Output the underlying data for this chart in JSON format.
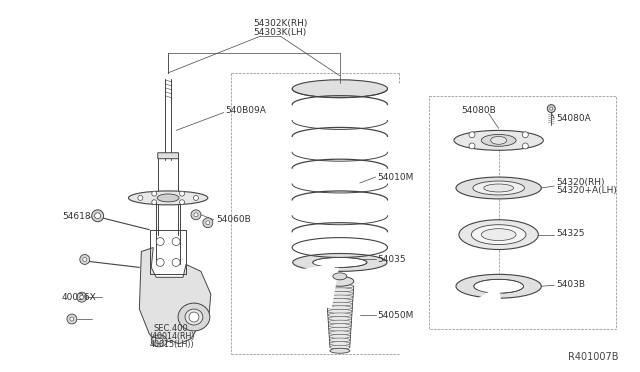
{
  "bg_color": "#ffffff",
  "fig_width": 6.4,
  "fig_height": 3.72,
  "dpi": 100,
  "diagram_ref": "R401007B",
  "line_color": "#444444",
  "labels": {
    "54302K_RH": "54302K(RH)",
    "54303K_LH": "54303K(LH)",
    "54080B": "54080B",
    "54080A": "54080A",
    "54060B": "54060B",
    "54010M": "54010M",
    "54035": "54035",
    "54050M": "54050M",
    "54320_RH": "54320(RH)",
    "54320A_LH": "54320+A(LH)",
    "54325": "54325",
    "5403B": "5403B",
    "54618": "54618",
    "40036X": "40036X",
    "SEC400": "SEC.400",
    "40014_RH": "(40014(RH)",
    "40015_LH": "40015(LH))",
    "540B09A": "540B09A"
  }
}
